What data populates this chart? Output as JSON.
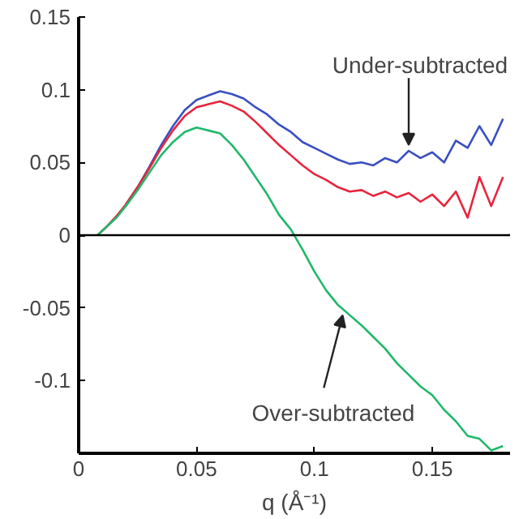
{
  "chart_data": {
    "type": "line",
    "xlabel": "q (Å⁻¹)",
    "x": [
      0.008,
      0.012,
      0.016,
      0.02,
      0.025,
      0.03,
      0.035,
      0.04,
      0.045,
      0.05,
      0.055,
      0.06,
      0.065,
      0.07,
      0.075,
      0.08,
      0.085,
      0.09,
      0.095,
      0.1,
      0.105,
      0.11,
      0.115,
      0.12,
      0.125,
      0.13,
      0.135,
      0.14,
      0.145,
      0.15,
      0.155,
      0.16,
      0.165,
      0.17,
      0.175,
      0.18
    ],
    "series": [
      {
        "color": "#3a4fc0",
        "values": [
          null,
          null,
          null,
          0.021,
          0.033,
          0.047,
          0.062,
          0.075,
          0.086,
          0.093,
          0.096,
          0.099,
          0.097,
          0.094,
          0.088,
          0.083,
          0.076,
          0.071,
          0.064,
          0.06,
          0.056,
          0.052,
          0.049,
          0.05,
          0.048,
          0.053,
          0.05,
          0.058,
          0.053,
          0.057,
          0.05,
          0.065,
          0.06,
          0.075,
          0.062,
          0.08
        ]
      },
      {
        "color": "#e8243c",
        "values": [
          0,
          0.006,
          0.013,
          0.021,
          0.033,
          0.046,
          0.06,
          0.072,
          0.082,
          0.088,
          0.09,
          0.092,
          0.089,
          0.085,
          0.078,
          0.07,
          0.062,
          0.055,
          0.048,
          0.042,
          0.038,
          0.033,
          0.03,
          0.031,
          0.027,
          0.03,
          0.026,
          0.029,
          0.023,
          0.028,
          0.02,
          0.03,
          0.012,
          0.04,
          0.02,
          0.04
        ]
      },
      {
        "color": "#1fb86a",
        "values": [
          0,
          0.006,
          0.012,
          0.02,
          0.031,
          0.043,
          0.055,
          0.064,
          0.071,
          0.074,
          0.072,
          0.07,
          0.062,
          0.052,
          0.04,
          0.028,
          0.014,
          0.004,
          -0.01,
          -0.025,
          -0.038,
          -0.048,
          -0.055,
          -0.062,
          -0.07,
          -0.078,
          -0.088,
          -0.096,
          -0.104,
          -0.11,
          -0.12,
          -0.128,
          -0.138,
          -0.14,
          -0.148,
          -0.145
        ]
      }
    ],
    "xlim": [
      0,
      0.183
    ],
    "ylim": [
      -0.15,
      0.15
    ],
    "xticks": [
      0,
      0.05,
      0.1,
      0.15
    ],
    "yticks": [
      -0.1,
      -0.05,
      0,
      0.05,
      0.1,
      0.15
    ],
    "ref_lines": [
      {
        "axis": "y",
        "value": 0,
        "color": "#000000"
      }
    ],
    "annotations": [
      {
        "text": "Under-subtracted",
        "x": 0.14,
        "y": 0.062
      },
      {
        "text": "Over-subtracted",
        "x": 0.112,
        "y": -0.055
      }
    ],
    "grid": false
  }
}
